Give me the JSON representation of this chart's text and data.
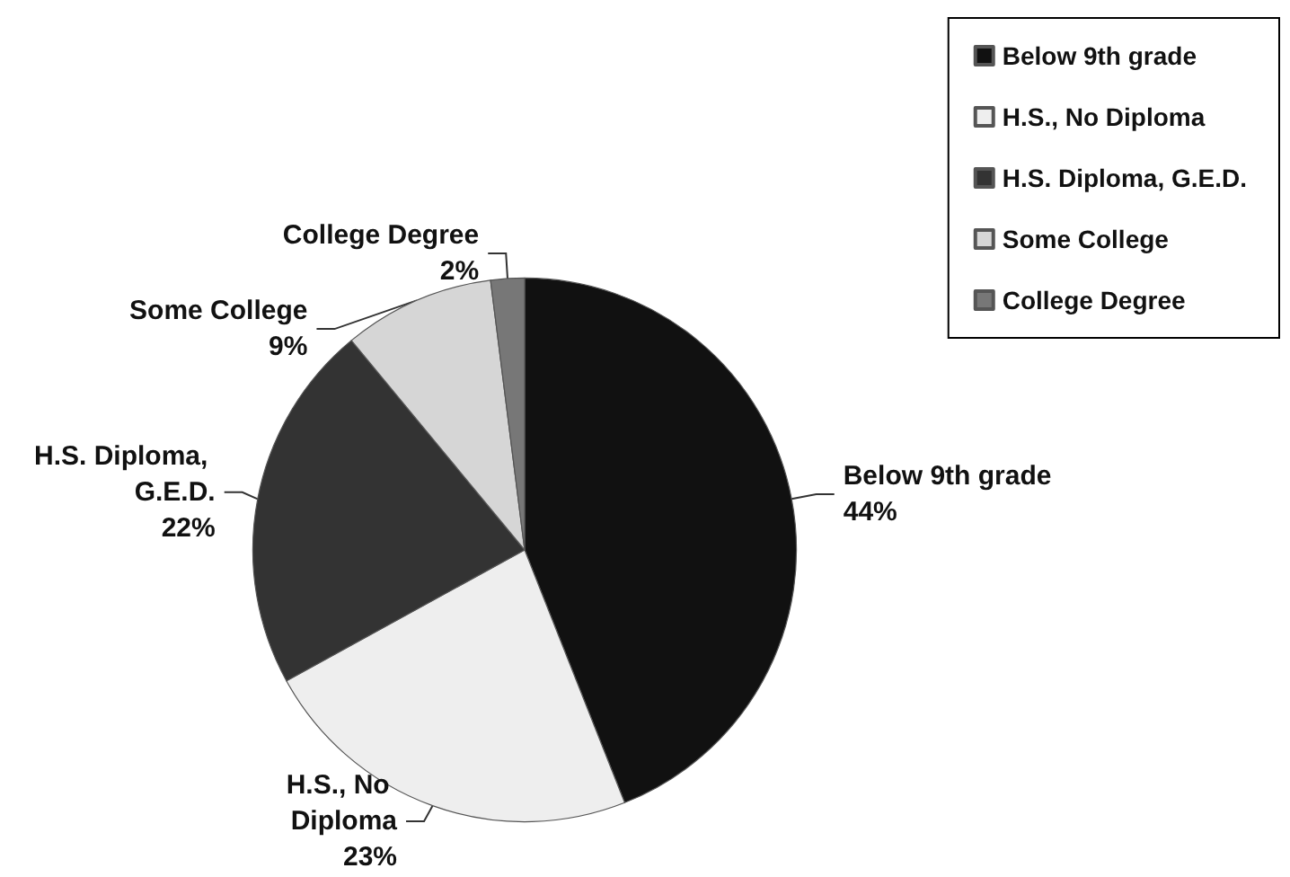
{
  "chart_data": {
    "type": "pie",
    "categories": [
      "Below 9th grade",
      "H.S., No Diploma",
      "H.S. Diploma, G.E.D.",
      "Some College",
      "College Degree"
    ],
    "values": [
      44,
      23,
      22,
      9,
      2
    ],
    "colors": [
      "#111111",
      "#eeeeee",
      "#333333",
      "#d6d6d6",
      "#777777"
    ],
    "value_labels": [
      "44%",
      "23%",
      "22%",
      "9%",
      "2%"
    ],
    "legend": "top right"
  }
}
